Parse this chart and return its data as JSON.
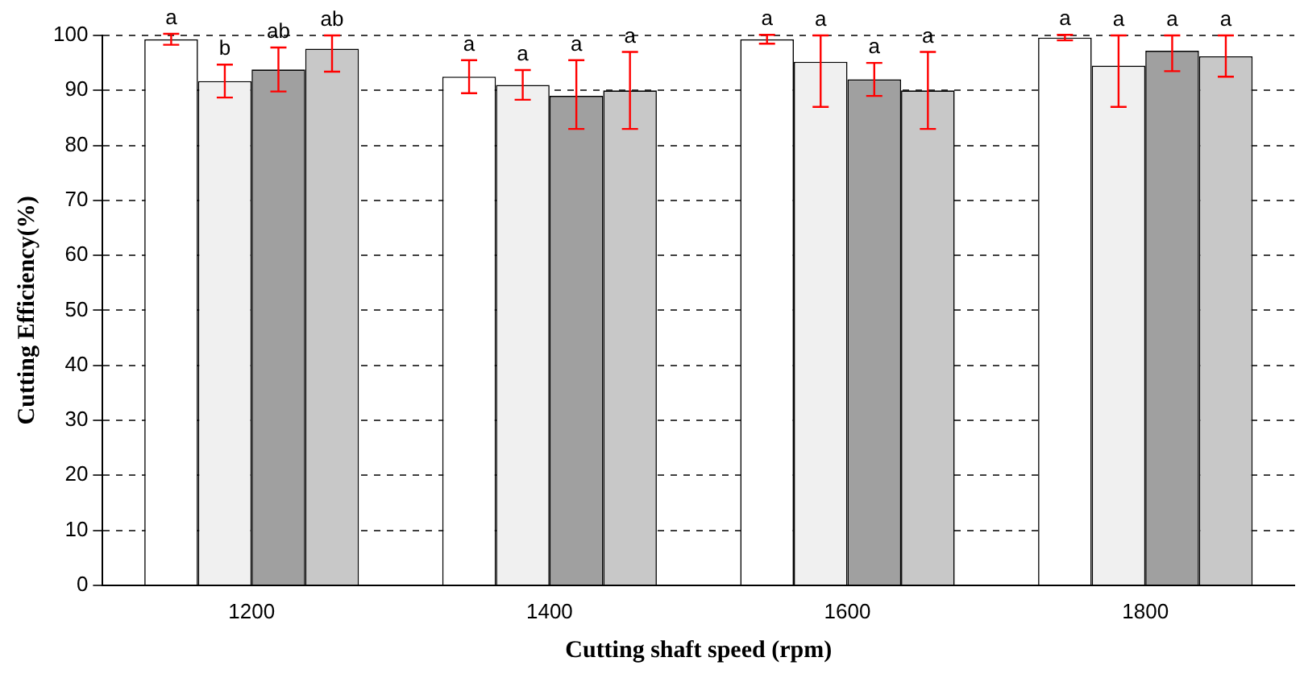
{
  "chart_data": {
    "type": "bar",
    "xlabel": "Cutting shaft speed (rpm)",
    "ylabel": "Cutting Efficiency(%)",
    "categories": [
      "1200",
      "1400",
      "1600",
      "1800"
    ],
    "ylim": [
      0,
      100
    ],
    "yticks": [
      0,
      10,
      20,
      30,
      40,
      50,
      60,
      70,
      80,
      90,
      100
    ],
    "grid": "y",
    "legend": false,
    "series": [
      {
        "color": "#ffffff",
        "values": [
          99.3,
          92.5,
          99.3,
          99.6
        ],
        "errors": [
          1,
          3,
          0.8,
          0.5
        ],
        "value_labels": [
          "a",
          "a",
          "a",
          "a"
        ]
      },
      {
        "color": "#f0f0f0",
        "values": [
          91.7,
          91,
          95.2,
          94.5
        ],
        "errors": [
          3,
          2.7,
          [
            87,
            100
          ],
          [
            87,
            100
          ]
        ],
        "value_labels": [
          "b",
          "a",
          "a",
          "a"
        ]
      },
      {
        "color": "#a0a0a0",
        "values": [
          93.8,
          89,
          92,
          97.2
        ],
        "errors": [
          4,
          [
            83,
            95.5
          ],
          3,
          [
            93.5,
            100
          ]
        ],
        "value_labels": [
          "ab",
          "a",
          "a",
          "a"
        ]
      },
      {
        "color": "#c8c8c8",
        "values": [
          97.6,
          90,
          90,
          96.2
        ],
        "errors": [
          [
            93.4,
            100
          ],
          7,
          7,
          [
            92.5,
            100
          ]
        ],
        "value_labels": [
          "ab",
          "a",
          "a",
          "a"
        ]
      }
    ]
  }
}
